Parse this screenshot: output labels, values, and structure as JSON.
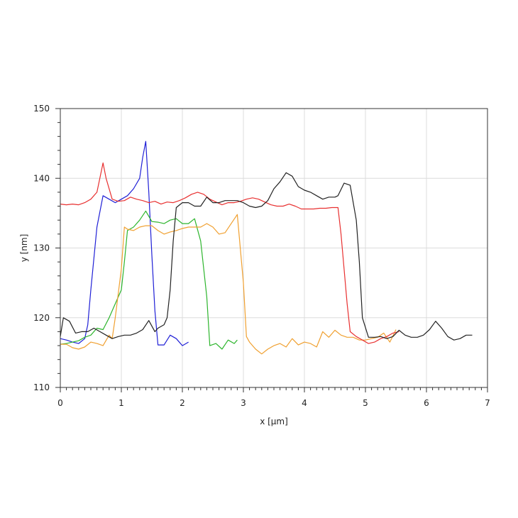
{
  "chart_data": {
    "type": "line",
    "xlabel": "x [µm]",
    "ylabel": "y [nm]",
    "xlim": [
      0,
      7
    ],
    "ylim": [
      110,
      150
    ],
    "x_ticks": [
      0,
      1,
      2,
      3,
      4,
      5,
      6,
      7
    ],
    "y_ticks": [
      110,
      120,
      130,
      140,
      150
    ],
    "grid": true,
    "legend": "none",
    "series": [
      {
        "color": "#1f1fd6",
        "points": [
          [
            0,
            117
          ],
          [
            0.1,
            116.8
          ],
          [
            0.2,
            116.5
          ],
          [
            0.3,
            116.3
          ],
          [
            0.4,
            117
          ],
          [
            0.45,
            119
          ],
          [
            0.5,
            124
          ],
          [
            0.6,
            133
          ],
          [
            0.7,
            137.5
          ],
          [
            0.8,
            137
          ],
          [
            0.9,
            136.5
          ],
          [
            1.0,
            137
          ],
          [
            1.1,
            137.5
          ],
          [
            1.2,
            138.5
          ],
          [
            1.3,
            140
          ],
          [
            1.35,
            143
          ],
          [
            1.4,
            145.3
          ],
          [
            1.45,
            138
          ],
          [
            1.5,
            129
          ],
          [
            1.55,
            121
          ],
          [
            1.6,
            116.1
          ],
          [
            1.7,
            116.1
          ],
          [
            1.8,
            117.5
          ],
          [
            1.9,
            117
          ],
          [
            2.0,
            116
          ],
          [
            2.1,
            116.5
          ]
        ]
      },
      {
        "color": "#2db52d",
        "points": [
          [
            0,
            116.2
          ],
          [
            0.1,
            116.3
          ],
          [
            0.2,
            116.5
          ],
          [
            0.3,
            116.7
          ],
          [
            0.4,
            117.2
          ],
          [
            0.5,
            117.5
          ],
          [
            0.6,
            118.5
          ],
          [
            0.7,
            118.3
          ],
          [
            0.8,
            120
          ],
          [
            0.9,
            122
          ],
          [
            1.0,
            124
          ],
          [
            1.05,
            128
          ],
          [
            1.1,
            132.5
          ],
          [
            1.2,
            133
          ],
          [
            1.3,
            134
          ],
          [
            1.4,
            135.3
          ],
          [
            1.5,
            133.8
          ],
          [
            1.6,
            133.7
          ],
          [
            1.7,
            133.5
          ],
          [
            1.8,
            134
          ],
          [
            1.9,
            134.2
          ],
          [
            2.0,
            133.5
          ],
          [
            2.1,
            133.5
          ],
          [
            2.2,
            134.2
          ],
          [
            2.3,
            131
          ],
          [
            2.4,
            123
          ],
          [
            2.45,
            116
          ],
          [
            2.55,
            116.3
          ],
          [
            2.65,
            115.5
          ],
          [
            2.75,
            116.8
          ],
          [
            2.85,
            116.3
          ],
          [
            2.9,
            116.8
          ]
        ]
      },
      {
        "color": "#f0a030",
        "points": [
          [
            0,
            116.2
          ],
          [
            0.1,
            116.2
          ],
          [
            0.2,
            115.7
          ],
          [
            0.3,
            115.5
          ],
          [
            0.4,
            115.8
          ],
          [
            0.5,
            116.5
          ],
          [
            0.6,
            116.3
          ],
          [
            0.7,
            116
          ],
          [
            0.8,
            117.5
          ],
          [
            0.85,
            117
          ],
          [
            0.9,
            120
          ],
          [
            1.0,
            127
          ],
          [
            1.05,
            133
          ],
          [
            1.1,
            132.7
          ],
          [
            1.2,
            132.5
          ],
          [
            1.3,
            133
          ],
          [
            1.4,
            133.2
          ],
          [
            1.5,
            133.2
          ],
          [
            1.6,
            132.5
          ],
          [
            1.7,
            132
          ],
          [
            1.8,
            132.3
          ],
          [
            1.9,
            132.5
          ],
          [
            2.0,
            132.8
          ],
          [
            2.1,
            133
          ],
          [
            2.2,
            133
          ],
          [
            2.3,
            133
          ],
          [
            2.4,
            133.5
          ],
          [
            2.5,
            133
          ],
          [
            2.6,
            132
          ],
          [
            2.7,
            132.2
          ],
          [
            2.8,
            133.5
          ],
          [
            2.9,
            134.8
          ],
          [
            3.0,
            125
          ],
          [
            3.05,
            117.3
          ],
          [
            3.1,
            116.5
          ],
          [
            3.2,
            115.5
          ],
          [
            3.3,
            114.8
          ],
          [
            3.4,
            115.5
          ],
          [
            3.5,
            116
          ],
          [
            3.6,
            116.3
          ],
          [
            3.7,
            115.8
          ],
          [
            3.8,
            117
          ],
          [
            3.9,
            116.1
          ],
          [
            4.0,
            116.5
          ],
          [
            4.1,
            116.3
          ],
          [
            4.2,
            115.8
          ],
          [
            4.3,
            118
          ],
          [
            4.4,
            117.2
          ],
          [
            4.5,
            118.2
          ],
          [
            4.6,
            117.5
          ],
          [
            4.7,
            117.2
          ],
          [
            4.8,
            117.2
          ],
          [
            4.9,
            116.8
          ],
          [
            5.0,
            116.8
          ],
          [
            5.1,
            117
          ],
          [
            5.2,
            117.2
          ],
          [
            5.3,
            117.8
          ],
          [
            5.4,
            116.5
          ],
          [
            5.5,
            118.3
          ]
        ]
      },
      {
        "color": "#e83030",
        "points": [
          [
            0,
            136.3
          ],
          [
            0.1,
            136.2
          ],
          [
            0.2,
            136.3
          ],
          [
            0.3,
            136.2
          ],
          [
            0.4,
            136.5
          ],
          [
            0.5,
            137
          ],
          [
            0.6,
            138
          ],
          [
            0.7,
            142.2
          ],
          [
            0.75,
            140
          ],
          [
            0.85,
            137
          ],
          [
            0.95,
            136.7
          ],
          [
            1.05,
            136.8
          ],
          [
            1.15,
            137.3
          ],
          [
            1.25,
            137
          ],
          [
            1.35,
            136.8
          ],
          [
            1.45,
            136.5
          ],
          [
            1.55,
            136.7
          ],
          [
            1.65,
            136.3
          ],
          [
            1.75,
            136.6
          ],
          [
            1.85,
            136.5
          ],
          [
            1.95,
            136.8
          ],
          [
            2.05,
            137.2
          ],
          [
            2.15,
            137.7
          ],
          [
            2.25,
            138
          ],
          [
            2.35,
            137.7
          ],
          [
            2.45,
            137
          ],
          [
            2.55,
            136.6
          ],
          [
            2.65,
            136.2
          ],
          [
            2.75,
            136.5
          ],
          [
            2.85,
            136.5
          ],
          [
            2.95,
            136.7
          ],
          [
            3.05,
            137
          ],
          [
            3.15,
            137.2
          ],
          [
            3.25,
            137
          ],
          [
            3.35,
            136.6
          ],
          [
            3.45,
            136.2
          ],
          [
            3.55,
            136
          ],
          [
            3.65,
            136
          ],
          [
            3.75,
            136.3
          ],
          [
            3.85,
            136
          ],
          [
            3.95,
            135.6
          ],
          [
            4.05,
            135.6
          ],
          [
            4.15,
            135.6
          ],
          [
            4.25,
            135.7
          ],
          [
            4.35,
            135.7
          ],
          [
            4.45,
            135.8
          ],
          [
            4.55,
            135.8
          ],
          [
            4.6,
            132
          ],
          [
            4.65,
            127
          ],
          [
            4.7,
            122
          ],
          [
            4.75,
            118
          ],
          [
            4.85,
            117.3
          ],
          [
            4.95,
            116.8
          ],
          [
            5.05,
            116.3
          ],
          [
            5.15,
            116.5
          ],
          [
            5.25,
            117
          ],
          [
            5.35,
            117.3
          ],
          [
            5.45,
            117.8
          ],
          [
            5.55,
            118
          ]
        ]
      },
      {
        "color": "#222222",
        "points": [
          [
            0,
            117.3
          ],
          [
            0.05,
            120
          ],
          [
            0.15,
            119.5
          ],
          [
            0.25,
            117.8
          ],
          [
            0.35,
            118
          ],
          [
            0.45,
            118
          ],
          [
            0.55,
            118.5
          ],
          [
            0.65,
            118
          ],
          [
            0.75,
            117.5
          ],
          [
            0.85,
            117
          ],
          [
            0.95,
            117.3
          ],
          [
            1.05,
            117.5
          ],
          [
            1.15,
            117.5
          ],
          [
            1.25,
            117.8
          ],
          [
            1.35,
            118.3
          ],
          [
            1.45,
            119.6
          ],
          [
            1.55,
            118
          ],
          [
            1.6,
            118.5
          ],
          [
            1.7,
            119
          ],
          [
            1.75,
            120
          ],
          [
            1.8,
            124
          ],
          [
            1.85,
            131
          ],
          [
            1.9,
            135.8
          ],
          [
            2.0,
            136.5
          ],
          [
            2.1,
            136.5
          ],
          [
            2.2,
            136
          ],
          [
            2.3,
            136
          ],
          [
            2.4,
            137.3
          ],
          [
            2.5,
            136.5
          ],
          [
            2.6,
            136.5
          ],
          [
            2.7,
            136.8
          ],
          [
            2.8,
            136.8
          ],
          [
            2.9,
            136.8
          ],
          [
            3.0,
            136.5
          ],
          [
            3.1,
            136
          ],
          [
            3.2,
            135.8
          ],
          [
            3.3,
            136
          ],
          [
            3.4,
            136.8
          ],
          [
            3.5,
            138.5
          ],
          [
            3.6,
            139.5
          ],
          [
            3.7,
            140.8
          ],
          [
            3.8,
            140.3
          ],
          [
            3.9,
            138.8
          ],
          [
            4.0,
            138.3
          ],
          [
            4.1,
            138
          ],
          [
            4.2,
            137.5
          ],
          [
            4.3,
            137
          ],
          [
            4.4,
            137.3
          ],
          [
            4.5,
            137.3
          ],
          [
            4.55,
            137.5
          ],
          [
            4.65,
            139.3
          ],
          [
            4.75,
            139
          ],
          [
            4.85,
            134
          ],
          [
            4.9,
            128
          ],
          [
            4.95,
            120
          ],
          [
            5.05,
            117.2
          ],
          [
            5.15,
            117.2
          ],
          [
            5.25,
            117.3
          ],
          [
            5.35,
            117
          ],
          [
            5.45,
            117.3
          ],
          [
            5.55,
            118.2
          ],
          [
            5.65,
            117.5
          ],
          [
            5.75,
            117.2
          ],
          [
            5.85,
            117.2
          ],
          [
            5.95,
            117.5
          ],
          [
            6.05,
            118.3
          ],
          [
            6.15,
            119.5
          ],
          [
            6.25,
            118.5
          ],
          [
            6.35,
            117.3
          ],
          [
            6.45,
            116.8
          ],
          [
            6.55,
            117
          ],
          [
            6.65,
            117.5
          ],
          [
            6.75,
            117.5
          ]
        ]
      }
    ]
  }
}
